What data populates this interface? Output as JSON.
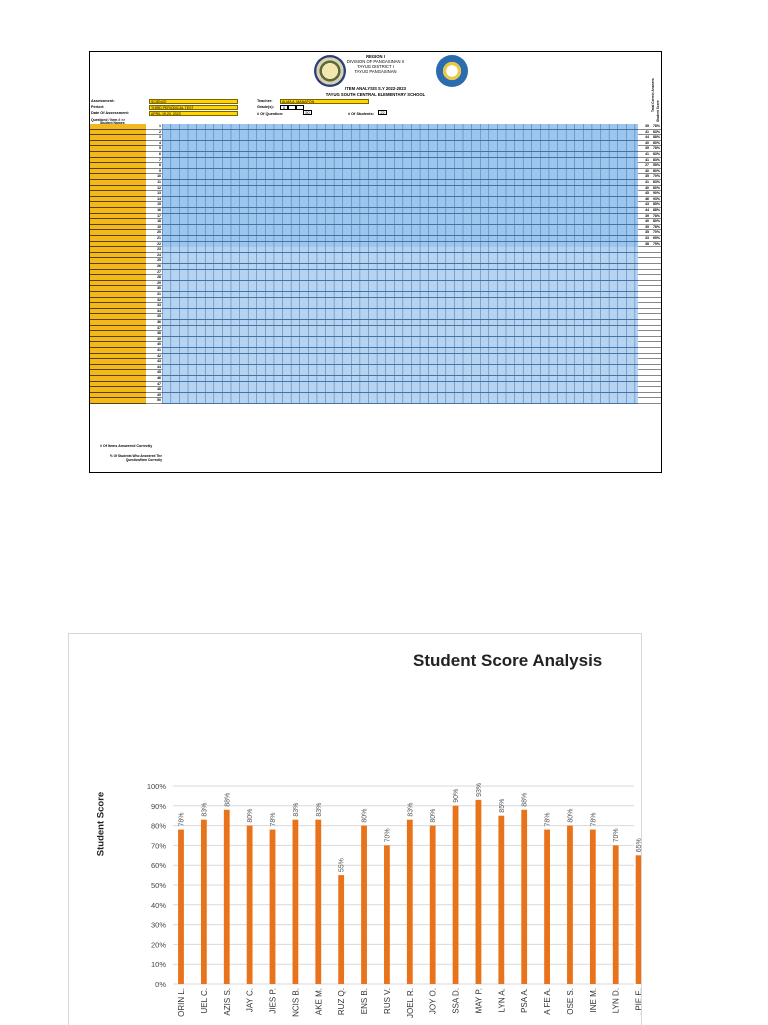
{
  "sheet": {
    "header": {
      "region": "REGION I",
      "division": "DIVISION OF PANGASINAN II",
      "district": "TAYUG DISTRICT I",
      "town": "TAYUG PANGASINAN",
      "title": "ITEM ANALYSIS S.Y 2022-2023",
      "school": "TAYUG SOUTH CENTRAL ELEMENTARY SCHOOL"
    },
    "meta": {
      "assessment_label": "Assessment:",
      "assessment_value": "SCIENCE",
      "period_label": "Period:",
      "period_value": "THIRD PERIODICAL TEST",
      "date_label": "Date Of Assessment:",
      "date_value": "APRIL 19-20, 2023",
      "teacher_label": "Teacher:",
      "teacher_value": "ALMA A. MANAPON",
      "grade_label": "Grade(s):",
      "grade_value": "5",
      "questions_label": "# Of Question:",
      "questions_value": "50",
      "students_label": "# Of Students:",
      "students_value": "22",
      "question_item_label": "Question# / Item # >>",
      "student_names_label": "Student Names",
      "total_correct_label": "Total Correct Answers",
      "student_score_label": "Student Score"
    },
    "rows_with_scores": [
      {
        "no": "1",
        "score": "39",
        "pct": "78%"
      },
      {
        "no": "2",
        "score": "41",
        "pct": "83%"
      },
      {
        "no": "3",
        "score": "44",
        "pct": "88%"
      },
      {
        "no": "4",
        "score": "40",
        "pct": "80%"
      },
      {
        "no": "5",
        "score": "39",
        "pct": "78%"
      },
      {
        "no": "6",
        "score": "41",
        "pct": "83%"
      },
      {
        "no": "7",
        "score": "41",
        "pct": "83%"
      },
      {
        "no": "8",
        "score": "27",
        "pct": "55%"
      },
      {
        "no": "9",
        "score": "40",
        "pct": "80%"
      },
      {
        "no": "10",
        "score": "35",
        "pct": "70%"
      },
      {
        "no": "11",
        "score": "41",
        "pct": "83%"
      },
      {
        "no": "12",
        "score": "40",
        "pct": "80%"
      },
      {
        "no": "13",
        "score": "45",
        "pct": "90%"
      },
      {
        "no": "14",
        "score": "46",
        "pct": "93%"
      },
      {
        "no": "15",
        "score": "43",
        "pct": "85%"
      },
      {
        "no": "16",
        "score": "44",
        "pct": "88%"
      },
      {
        "no": "17",
        "score": "39",
        "pct": "78%"
      },
      {
        "no": "18",
        "score": "40",
        "pct": "80%"
      },
      {
        "no": "19",
        "score": "39",
        "pct": "78%"
      },
      {
        "no": "20",
        "score": "35",
        "pct": "70%"
      },
      {
        "no": "21",
        "score": "33",
        "pct": "65%"
      },
      {
        "no": "22",
        "score": "38",
        "pct": "75%"
      }
    ],
    "empty_rows_start": 23,
    "empty_rows_end": 50,
    "footer": {
      "correct_row_label": "# Of Items Answered Correctly",
      "percent_row_label": "% Of Students Who Answered The Question/Item Correctly"
    }
  },
  "chart_data": {
    "type": "bar",
    "title": "Student Score Analysis",
    "ylabel": "Student Score",
    "xlabel": "",
    "ylim": [
      0,
      100
    ],
    "yticks": [
      "0%",
      "10%",
      "20%",
      "30%",
      "40%",
      "50%",
      "60%",
      "70%",
      "80%",
      "90%",
      "100%"
    ],
    "categories": [
      "ORIN L.",
      "UEL C.",
      "AZIS S.",
      "JAY C.",
      "JIES P.",
      "NCIS B.",
      "AKE M.",
      "RUZ Q.",
      "ENS B.",
      "RUS V.",
      "JOEL R.",
      "JOY O.",
      "SSA D.",
      "MAY P.",
      "LYN A.",
      "PSA A.",
      "A FE A.",
      "OSE S.",
      "INE M.",
      "LYN D.",
      ", PIE E.",
      "NNY E.",
      "",
      "",
      "",
      "",
      "",
      "",
      ""
    ],
    "values": [
      78,
      83,
      88,
      80,
      78,
      83,
      83,
      55,
      80,
      70,
      83,
      80,
      90,
      93,
      85,
      88,
      78,
      80,
      78,
      70,
      65,
      75,
      0,
      0,
      0,
      0,
      0,
      0,
      0
    ],
    "labels": [
      "78%",
      "83%",
      "88%",
      "80%",
      "78%",
      "83%",
      "83%",
      "55%",
      "80%",
      "70%",
      "83%",
      "80%",
      "90%",
      "93%",
      "85%",
      "88%",
      "78%",
      "80%",
      "78%",
      "70%",
      "65%",
      "75%",
      "0%",
      "0%",
      "0%",
      "0%",
      "0%",
      "0%",
      "0%"
    ],
    "bar_color": "#e8731b",
    "grid": true
  }
}
